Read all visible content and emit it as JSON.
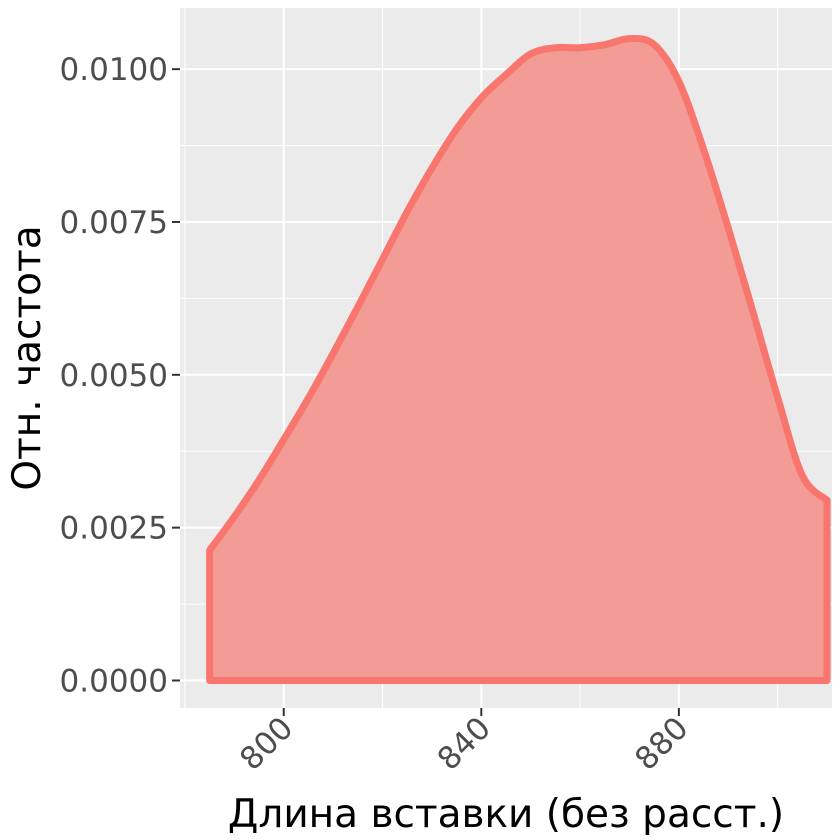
{
  "chart_data": {
    "type": "area",
    "title": "",
    "xlabel": "Длина вставки (без расст.)",
    "ylabel": "Отн. частота",
    "xlim": [
      779,
      911
    ],
    "ylim": [
      -0.00045,
      0.011
    ],
    "x_ticks": [
      800,
      840,
      880
    ],
    "x_tick_labels": [
      "800",
      "840",
      "880"
    ],
    "y_ticks": [
      0.0,
      0.0025,
      0.005,
      0.0075,
      0.01
    ],
    "y_tick_labels": [
      "0.0000",
      "0.0025",
      "0.0050",
      "0.0075",
      "0.0100"
    ],
    "grid": true,
    "legend": "none",
    "series": [
      {
        "fill_color": "#f39b95",
        "line_color": "#f8766d",
        "x": [
          785,
          790,
          795,
          800,
          805,
          810,
          815,
          820,
          825,
          830,
          835,
          840,
          845,
          850,
          855,
          860,
          865,
          870,
          875,
          880,
          885,
          890,
          895,
          900,
          905,
          910
        ],
        "y": [
          0.00213,
          0.00268,
          0.00328,
          0.00394,
          0.00462,
          0.00535,
          0.00611,
          0.00689,
          0.00767,
          0.00838,
          0.00902,
          0.00953,
          0.00991,
          0.01025,
          0.01035,
          0.01035,
          0.0104,
          0.0105,
          0.0104,
          0.0098,
          0.00869,
          0.0074,
          0.00603,
          0.00463,
          0.00335,
          0.00295
        ]
      }
    ]
  }
}
